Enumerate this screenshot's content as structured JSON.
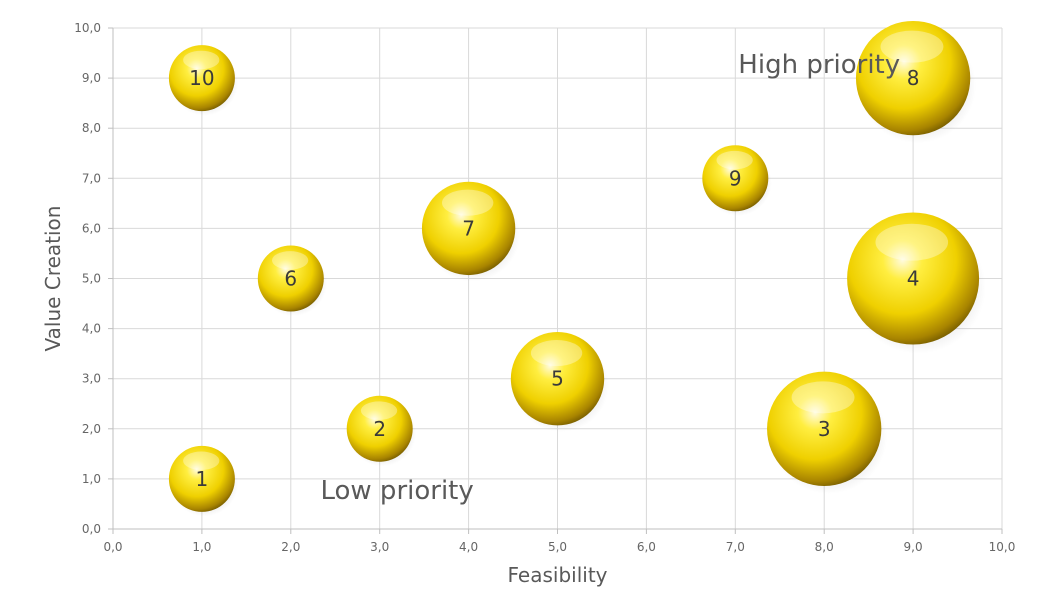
{
  "chart_data": {
    "type": "scatter",
    "subtype": "bubble",
    "title": "",
    "xlabel": "Feasibility",
    "ylabel": "Value Creation",
    "xlim": [
      0,
      10
    ],
    "ylim": [
      0,
      10
    ],
    "xticks": [
      "0,0",
      "1,0",
      "2,0",
      "3,0",
      "4,0",
      "5,0",
      "6,0",
      "7,0",
      "8,0",
      "9,0",
      "10,0"
    ],
    "yticks": [
      "0,0",
      "1,0",
      "2,0",
      "3,0",
      "4,0",
      "5,0",
      "6,0",
      "7,0",
      "8,0",
      "9,0",
      "10,0"
    ],
    "grid": true,
    "legend": "none",
    "bubble_color": "#f2d600",
    "series": [
      {
        "name": "Initiatives",
        "points": [
          {
            "label": "1",
            "x": 1,
            "y": 1,
            "size": 1.0
          },
          {
            "label": "2",
            "x": 3,
            "y": 2,
            "size": 1.0
          },
          {
            "label": "3",
            "x": 8,
            "y": 2,
            "size": 3.0
          },
          {
            "label": "4",
            "x": 9,
            "y": 5,
            "size": 4.0
          },
          {
            "label": "5",
            "x": 5,
            "y": 3,
            "size": 2.0
          },
          {
            "label": "6",
            "x": 2,
            "y": 5,
            "size": 1.0
          },
          {
            "label": "7",
            "x": 4,
            "y": 6,
            "size": 2.0
          },
          {
            "label": "8",
            "x": 9,
            "y": 9,
            "size": 3.0
          },
          {
            "label": "9",
            "x": 7,
            "y": 7,
            "size": 1.0
          },
          {
            "label": "10",
            "x": 1,
            "y": 9,
            "size": 1.0
          }
        ]
      }
    ],
    "annotations": [
      {
        "text": "High priority",
        "x": 7.0,
        "y": 9.1
      },
      {
        "text": "Low priority",
        "x": 2.3,
        "y": 0.6
      }
    ]
  }
}
